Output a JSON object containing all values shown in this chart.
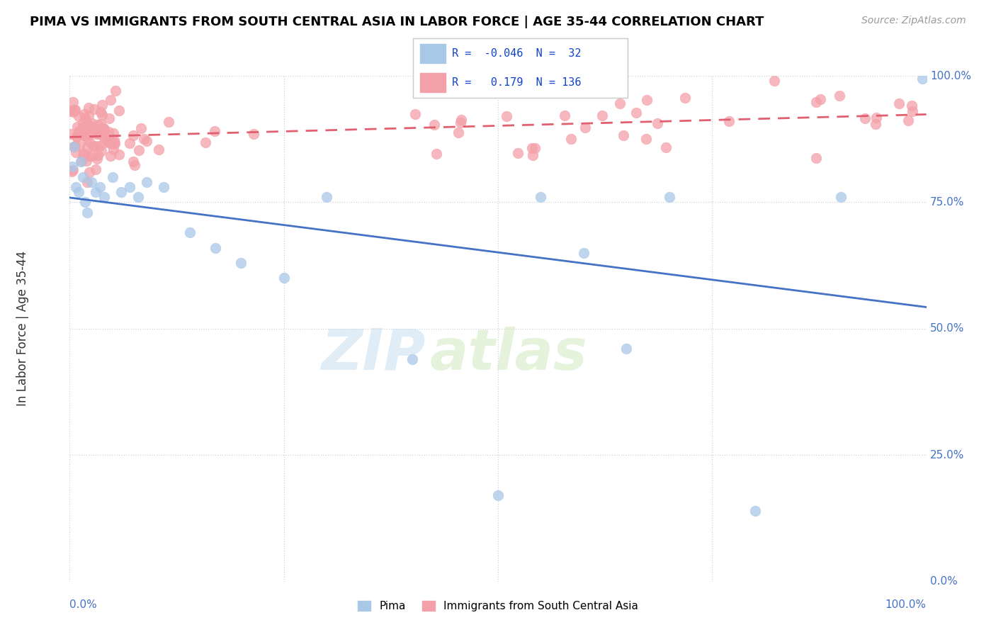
{
  "title": "PIMA VS IMMIGRANTS FROM SOUTH CENTRAL ASIA IN LABOR FORCE | AGE 35-44 CORRELATION CHART",
  "source": "Source: ZipAtlas.com",
  "ylabel": "In Labor Force | Age 35-44",
  "legend_labels": [
    "Pima",
    "Immigrants from South Central Asia"
  ],
  "watermark_zip": "ZIP",
  "watermark_atlas": "atlas",
  "pima_R": -0.046,
  "pima_N": 32,
  "immigrants_R": 0.179,
  "immigrants_N": 136,
  "pima_color": "#A8C8E8",
  "immigrants_color": "#F4A0A8",
  "pima_line_color": "#4472C4",
  "immigrants_line_color": "#E06070",
  "background_color": "#ffffff",
  "grid_color": "#cccccc",
  "title_color": "#000000",
  "source_color": "#999999",
  "axis_label_color": "#4472C4"
}
